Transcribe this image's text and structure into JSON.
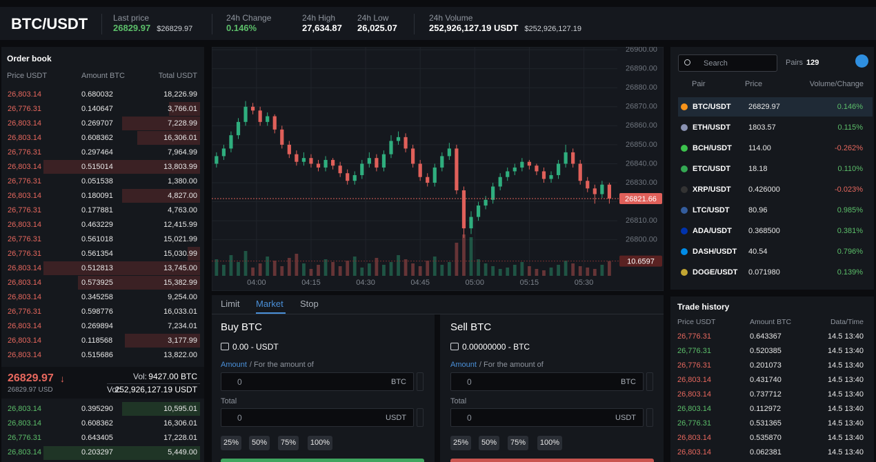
{
  "header": {
    "pair": "BTC/USDT",
    "stats": [
      {
        "label": "Last price",
        "value": "26829.97",
        "sub": "$26829.97",
        "color": "#5cbf6a"
      },
      {
        "label": "24h Change",
        "value": "0.146%",
        "color": "#5cbf6a"
      },
      {
        "label": "24h High",
        "value": "27,634.87"
      },
      {
        "label": "24h Low",
        "value": "26,025.07"
      },
      {
        "label": "24h Volume",
        "value": "252,926,127.19 USDT",
        "sub": "$252,926,127.19"
      }
    ]
  },
  "order_book": {
    "title": "Order book",
    "columns": [
      "Price USDT",
      "Amount BTC",
      "Total USDT"
    ],
    "asks": {
      "color": "#e8685e",
      "depth_color": "#3b2124",
      "rows": [
        [
          "26,803.14",
          "0.680032",
          "18,226.99"
        ],
        [
          "26,776.31",
          "0.140647",
          "3,766.01"
        ],
        [
          "26,803.14",
          "0.269707",
          "7,228.99"
        ],
        [
          "26,803.14",
          "0.608362",
          "16,306.01"
        ],
        [
          "26,776.31",
          "0.297464",
          "7,964.99"
        ],
        [
          "26,803.14",
          "0.515014",
          "13,803.99"
        ],
        [
          "26,776.31",
          "0.051538",
          "1,380.00"
        ],
        [
          "26,803.14",
          "0.180091",
          "4,827.00"
        ],
        [
          "26,776.31",
          "0.177881",
          "4,763.00"
        ],
        [
          "26,803.14",
          "0.463229",
          "12,415.99"
        ],
        [
          "26,776.31",
          "0.561018",
          "15,021.99"
        ],
        [
          "26,776.31",
          "0.561354",
          "15,030.99"
        ],
        [
          "26,803.14",
          "0.512813",
          "13,745.00"
        ],
        [
          "26,803.14",
          "0.573925",
          "15,382.99"
        ],
        [
          "26,803.14",
          "0.345258",
          "9,254.00"
        ],
        [
          "26,776.31",
          "0.598776",
          "16,033.01"
        ],
        [
          "26,803.14",
          "0.269894",
          "7,234.01"
        ],
        [
          "26,803.14",
          "0.118568",
          "3,177.99"
        ],
        [
          "26,803.14",
          "0.515686",
          "13,822.00"
        ]
      ],
      "depth": [
        0,
        20,
        50,
        40,
        0,
        100,
        0,
        50,
        0,
        0,
        0,
        8,
        100,
        78,
        0,
        0,
        0,
        48,
        0
      ]
    },
    "mid": {
      "price": "26829.97",
      "arrow": "↓",
      "usd": "26829.97 USD",
      "vol_label": "Vol:",
      "vol_btc": "9427.00 BTC",
      "vol_usdt": "252,926,127.19 USDT",
      "color": "#e8685e"
    },
    "bids": {
      "color": "#5cbf6a",
      "depth_color": "#1f3526",
      "rows": [
        [
          "26,803.14",
          "0.395290",
          "10,595.01"
        ],
        [
          "26,803.14",
          "0.608362",
          "16,306.01"
        ],
        [
          "26,776.31",
          "0.643405",
          "17,228.01"
        ],
        [
          "26,803.14",
          "0.203297",
          "5,449.00"
        ]
      ],
      "depth": [
        50,
        0,
        0,
        100
      ]
    }
  },
  "chart_data": {
    "type": "candlestick",
    "x": [
      -11,
      -9,
      -7,
      -5,
      -3,
      -1,
      1,
      3,
      5,
      7,
      9,
      11,
      13,
      15,
      17,
      19,
      21,
      23,
      25,
      27,
      29,
      31,
      33,
      35,
      37,
      39,
      41,
      43,
      45,
      47,
      49,
      51,
      53,
      55,
      57,
      59,
      61,
      63,
      65,
      67,
      69,
      71,
      73,
      75,
      77,
      79,
      81,
      83,
      85,
      87,
      89,
      91,
      93,
      95,
      97
    ],
    "open": [
      26840,
      26844,
      26848,
      26855,
      26862,
      26870,
      26868,
      26862,
      26865,
      26858,
      26850,
      26845,
      26841,
      26843,
      26840,
      26838,
      26842,
      26839,
      26835,
      26831,
      26834,
      26840,
      26843,
      26838,
      26845,
      26852,
      26854,
      26848,
      26840,
      26833,
      26830,
      26838,
      26844,
      26848,
      26826,
      26806,
      26812,
      26818,
      26821,
      26828,
      26833,
      26836,
      26838,
      26841,
      26839,
      26836,
      26832,
      26834,
      26840,
      26846,
      26840,
      26831,
      26827,
      26824,
      26829
    ],
    "high": [
      26846,
      26850,
      26857,
      26864,
      26873,
      26872,
      26870,
      26867,
      26866,
      26860,
      26852,
      26847,
      26846,
      26845,
      26842,
      26844,
      26843,
      26841,
      26837,
      26836,
      26842,
      26846,
      26845,
      26847,
      26855,
      26857,
      26856,
      26850,
      26842,
      26835,
      26840,
      26846,
      26851,
      26850,
      26828,
      26815,
      26820,
      26823,
      26830,
      26835,
      26838,
      26840,
      26843,
      26842,
      26840,
      26838,
      26836,
      26842,
      26850,
      26848,
      26842,
      26833,
      26829,
      26831,
      26830
    ],
    "low": [
      26838,
      26842,
      26846,
      26853,
      26860,
      26866,
      26860,
      26860,
      26856,
      26848,
      26843,
      26839,
      26839,
      26838,
      26836,
      26836,
      26837,
      26833,
      26829,
      26829,
      26832,
      26838,
      26836,
      26836,
      26843,
      26850,
      26846,
      26838,
      26831,
      26828,
      26828,
      26836,
      26842,
      26824,
      26801,
      26803,
      26810,
      26816,
      26819,
      26826,
      26831,
      26834,
      26836,
      26837,
      26834,
      26830,
      26830,
      26832,
      26838,
      26838,
      26829,
      26825,
      26819,
      26822,
      26819
    ],
    "close": [
      26844,
      26848,
      26855,
      26862,
      26870,
      26868,
      26862,
      26865,
      26858,
      26850,
      26845,
      26841,
      26843,
      26840,
      26838,
      26842,
      26839,
      26835,
      26831,
      26834,
      26840,
      26843,
      26838,
      26845,
      26852,
      26854,
      26848,
      26840,
      26833,
      26830,
      26838,
      26844,
      26848,
      26826,
      26806,
      26812,
      26818,
      26821,
      26828,
      26833,
      26836,
      26838,
      26841,
      26839,
      26836,
      26832,
      26834,
      26840,
      26846,
      26840,
      26831,
      26827,
      26824,
      26829,
      26821.66
    ],
    "volume": [
      12,
      8,
      15,
      10,
      18,
      6,
      9,
      14,
      11,
      7,
      13,
      16,
      9,
      5,
      8,
      12,
      10,
      7,
      11,
      14,
      6,
      9,
      13,
      8,
      10,
      15,
      12,
      9,
      7,
      11,
      14,
      8,
      10,
      24,
      30,
      28,
      12,
      9,
      7,
      5,
      6,
      8,
      10,
      7,
      5,
      4,
      6,
      8,
      11,
      9,
      7,
      6,
      5,
      8,
      10.6597
    ],
    "xlim": [
      -12.3,
      99.2
    ],
    "xticks": [
      {
        "value": 0,
        "label": "04:00"
      },
      {
        "value": 15,
        "label": "04:15"
      },
      {
        "value": 30,
        "label": "04:30"
      },
      {
        "value": 45,
        "label": "04:45"
      },
      {
        "value": 60,
        "label": "05:00"
      },
      {
        "value": 75,
        "label": "05:15"
      },
      {
        "value": 90,
        "label": "05:30"
      }
    ],
    "ylim": [
      26781,
      26901.5
    ],
    "yticks": [
      {
        "value": 26800,
        "label": "26800.00"
      },
      {
        "value": 26810,
        "label": "26810.00"
      },
      {
        "value": 26820,
        "label": "26820.00"
      },
      {
        "value": 26830,
        "label": "26830.00"
      },
      {
        "value": 26840,
        "label": "26840.00"
      },
      {
        "value": 26850,
        "label": "26850.00"
      },
      {
        "value": 26860,
        "label": "26860.00"
      },
      {
        "value": 26870,
        "label": "26870.00"
      },
      {
        "value": 26880,
        "label": "26880.00"
      },
      {
        "value": 26890,
        "label": "26890.00"
      },
      {
        "value": 26900,
        "label": "26900.00"
      }
    ],
    "volume_lim": [
      0,
      40
    ],
    "up_color": "#2fae7e",
    "down_color": "#e0605a",
    "grid": true
  },
  "trade": {
    "tabs": [
      "Limit",
      "Market",
      "Stop"
    ],
    "active_tab": 1,
    "forms": [
      {
        "title": "Buy BTC",
        "balance": "0.00 - USDT",
        "amount_label": "Amount",
        "amount_hint": "/ For the amount of",
        "amount_value": "0",
        "amount_unit": "BTC",
        "total_label": "Total",
        "total_value": "0",
        "total_unit": "USDT",
        "percents": [
          "25%",
          "50%",
          "75%",
          "100%"
        ],
        "button_color": "#3fa55f"
      },
      {
        "title": "Sell BTC",
        "balance": "0.00000000 - BTC",
        "amount_label": "Amount",
        "amount_hint": "/ For the amount of",
        "amount_value": "0",
        "amount_unit": "BTC",
        "total_label": "Total",
        "total_value": "0",
        "total_unit": "USDT",
        "percents": [
          "25%",
          "50%",
          "75%",
          "100%"
        ],
        "button_color": "#c9544f"
      }
    ]
  },
  "pairs": {
    "search_placeholder": "Search",
    "count_label": "Pairs",
    "count": 129,
    "columns": [
      "Pair",
      "Price",
      "Volume/Change"
    ],
    "selected": 0,
    "rows": [
      {
        "pair": "BTC/USDT",
        "price": "26829.97",
        "change": "0.146%",
        "color": "#5cbf6a",
        "icon_color": "#f7931a"
      },
      {
        "pair": "ETH/USDT",
        "price": "1803.57",
        "change": "0.115%",
        "color": "#5cbf6a",
        "icon_color": "#8a92b2"
      },
      {
        "pair": "BCH/USDT",
        "price": "114.00",
        "change": "-0.262%",
        "color": "#e8685e",
        "icon_color": "#3cc24d"
      },
      {
        "pair": "ETC/USDT",
        "price": "18.18",
        "change": "0.110%",
        "color": "#5cbf6a",
        "icon_color": "#34a853"
      },
      {
        "pair": "XRP/USDT",
        "price": "0.426000",
        "change": "-0.023%",
        "color": "#e8685e",
        "icon_color": "#333333"
      },
      {
        "pair": "LTC/USDT",
        "price": "80.96",
        "change": "0.985%",
        "color": "#5cbf6a",
        "icon_color": "#345d9d"
      },
      {
        "pair": "ADA/USDT",
        "price": "0.368500",
        "change": "0.381%",
        "color": "#5cbf6a",
        "icon_color": "#0033ad"
      },
      {
        "pair": "DASH/USDT",
        "price": "40.54",
        "change": "0.796%",
        "color": "#5cbf6a",
        "icon_color": "#008ce7"
      },
      {
        "pair": "DOGE/USDT",
        "price": "0.071980",
        "change": "0.139%",
        "color": "#5cbf6a",
        "icon_color": "#c2a633"
      }
    ]
  },
  "trade_history": {
    "title": "Trade history",
    "columns": [
      "Price USDT",
      "Amount BTC",
      "Data/Time"
    ],
    "rows": [
      {
        "price": "26,776.31",
        "amount": "0.643367",
        "time": "14.5 13:40",
        "color": "#e8685e"
      },
      {
        "price": "26,776.31",
        "amount": "0.520385",
        "time": "14.5 13:40",
        "color": "#5cbf6a"
      },
      {
        "price": "26,776.31",
        "amount": "0.201073",
        "time": "14.5 13:40",
        "color": "#e8685e"
      },
      {
        "price": "26,803.14",
        "amount": "0.431740",
        "time": "14.5 13:40",
        "color": "#e8685e"
      },
      {
        "price": "26,803.14",
        "amount": "0.737712",
        "time": "14.5 13:40",
        "color": "#e8685e"
      },
      {
        "price": "26,803.14",
        "amount": "0.112972",
        "time": "14.5 13:40",
        "color": "#5cbf6a"
      },
      {
        "price": "26,776.31",
        "amount": "0.531365",
        "time": "14.5 13:40",
        "color": "#5cbf6a"
      },
      {
        "price": "26,803.14",
        "amount": "0.535870",
        "time": "14.5 13:40",
        "color": "#e8685e"
      },
      {
        "price": "26,803.14",
        "amount": "0.062381",
        "time": "14.5 13:40",
        "color": "#e8685e"
      }
    ]
  }
}
